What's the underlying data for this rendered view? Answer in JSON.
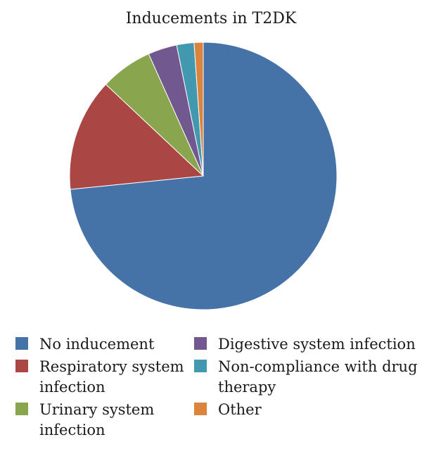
{
  "chart_data": {
    "type": "pie",
    "title": "Inducements in T2DK",
    "categories": [
      "No inducement",
      "Respiratory system infection",
      "Urinary system infection",
      "Digestive system infection",
      "Non-compliance with drug therapy",
      "Other"
    ],
    "values": [
      73.4,
      13.6,
      6.3,
      3.5,
      2.1,
      1.1
    ],
    "colors": [
      "#4572a7",
      "#aa4643",
      "#89a54e",
      "#71588f",
      "#4198af",
      "#db843d"
    ],
    "start_angle_deg": 0,
    "direction": "clockwise",
    "legend": "bottom"
  },
  "legend": {
    "items": [
      {
        "label_line1": "No inducement",
        "label_line2": ""
      },
      {
        "label_line1": "Respiratory system",
        "label_line2": "infection"
      },
      {
        "label_line1": "Urinary system",
        "label_line2": "infection"
      },
      {
        "label_line1": "Digestive system infection",
        "label_line2": ""
      },
      {
        "label_line1": "Non-compliance with drug",
        "label_line2": "therapy"
      },
      {
        "label_line1": "Other",
        "label_line2": ""
      }
    ]
  }
}
